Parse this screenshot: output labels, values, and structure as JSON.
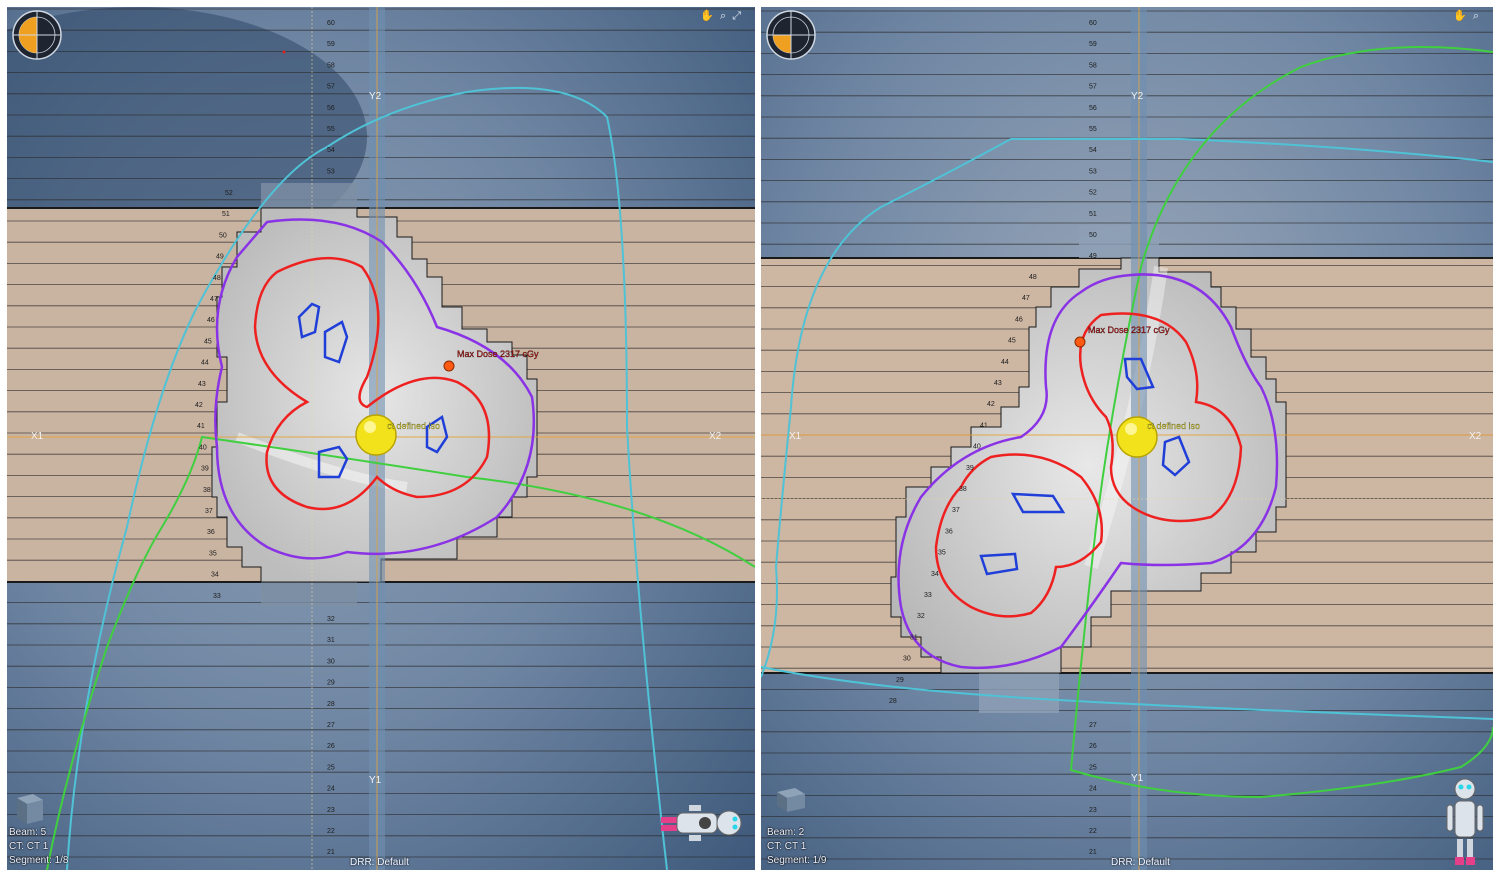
{
  "colors": {
    "field": "#c3b1a1",
    "background_blue": "#5a7593",
    "leaf_line": "#2b2b2b",
    "cyan_contour": "#4fc2d6",
    "green_contour": "#3fcf3f",
    "purple_isodose": "#8a32e6",
    "red_isodose": "#ee2020",
    "blue_target": "#1f3fd8",
    "isocenter": "#f2e21c",
    "axis_orange": "#e7a23a",
    "max_dose_marker": "#ff5a14"
  },
  "left_view": {
    "beam": "Beam: 5",
    "ct": "CT: CT 1",
    "segment": "Segment: 1/8",
    "drr": "DRR: Default",
    "iso_label": "ct defined iso",
    "max_dose_label": "Max Dose 2317 cGy",
    "axis_labels": {
      "x1": "X1",
      "x2": "X2",
      "y1": "Y1",
      "y2": "Y2"
    },
    "leaf_numbers_top": [
      "60",
      "59",
      "58",
      "57",
      "56",
      "55",
      "54",
      "53"
    ],
    "leaf_numbers_left": [
      "52",
      "51",
      "50",
      "49",
      "48",
      "47",
      "46",
      "45",
      "44",
      "43",
      "42",
      "41",
      "40",
      "39",
      "38",
      "37",
      "36",
      "35",
      "34",
      "33"
    ],
    "leaf_numbers_bottom": [
      "32",
      "31",
      "30",
      "29",
      "28",
      "27",
      "26",
      "25",
      "24",
      "23",
      "22",
      "21"
    ],
    "view_tool_icons": [
      "hand-icon",
      "zoom-icon",
      "fit-icon"
    ],
    "orientation_figure": "patient-figure-icon",
    "cube_icon": "beam-view-cube-icon"
  },
  "right_view": {
    "beam": "Beam: 2",
    "ct": "CT: CT 1",
    "segment": "Segment: 1/9",
    "drr": "DRR: Default",
    "iso_label": "ct defined iso",
    "max_dose_label": "Max Dose 2317 cGy",
    "axis_labels": {
      "x1": "X1",
      "x2": "X2",
      "y1": "Y1",
      "y2": "Y2"
    },
    "leaf_numbers_top": [
      "60",
      "59",
      "58",
      "57",
      "56",
      "55",
      "54",
      "53",
      "52",
      "51",
      "50",
      "49"
    ],
    "leaf_numbers_left": [
      "48",
      "47",
      "46",
      "45",
      "44",
      "43",
      "42",
      "41",
      "40",
      "39",
      "38",
      "37",
      "36",
      "35",
      "34",
      "33",
      "32",
      "31",
      "30",
      "29",
      "28"
    ],
    "leaf_numbers_bottom": [
      "27",
      "26",
      "25",
      "24",
      "23",
      "22",
      "21"
    ],
    "view_tool_icons": [
      "hand-icon",
      "zoom-icon"
    ],
    "orientation_figure": "patient-figure-icon",
    "cube_icon": "beam-view-cube-icon"
  }
}
